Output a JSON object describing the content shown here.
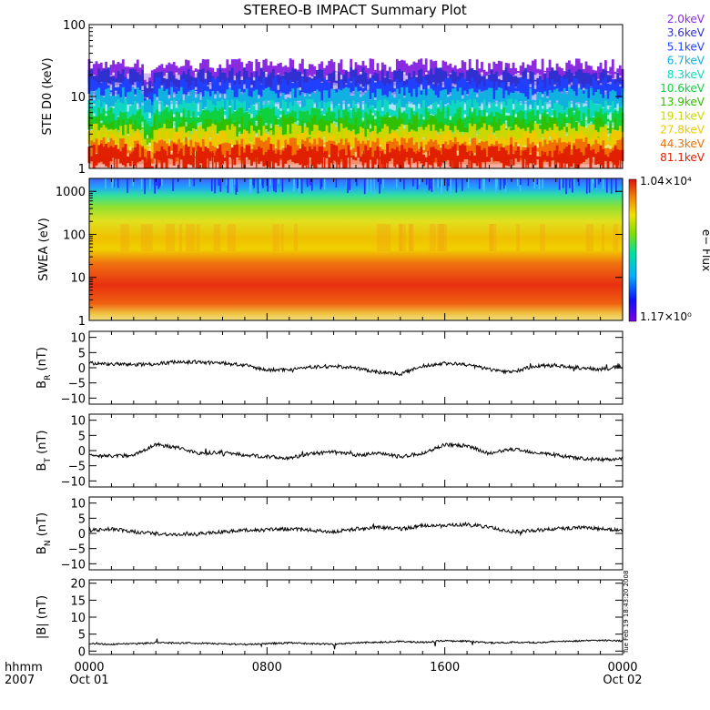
{
  "title": "STEREO-B IMPACT Summary Plot",
  "timestamp": "Tue Feb 19 18:43:20 2008",
  "time_axis": {
    "row1_label": "hhmm",
    "row2_label": "2007",
    "ticks": [
      {
        "hour": 0,
        "label": "0000",
        "date": "Oct 01"
      },
      {
        "hour": 8,
        "label": "0800",
        "date": ""
      },
      {
        "hour": 16,
        "label": "1600",
        "date": ""
      },
      {
        "hour": 24,
        "label": "0000",
        "date": "Oct 02"
      }
    ],
    "range_hours": [
      0,
      24
    ]
  },
  "colors": {
    "energy_channels": [
      "#8a2be2",
      "#3030d0",
      "#2040ff",
      "#10b0e0",
      "#10d8c0",
      "#10d040",
      "#30c000",
      "#c8d800",
      "#f0c800",
      "#f07000",
      "#e02000"
    ]
  },
  "chart_data": [
    {
      "name": "ste",
      "type": "line",
      "ylabel": "STE D0 (keV)",
      "yscale": "log",
      "ylim": [
        1,
        100
      ],
      "yticks": [
        {
          "v": 1,
          "label": "1"
        },
        {
          "v": 10,
          "label": "10"
        },
        {
          "v": 100,
          "label": "100"
        }
      ],
      "legend_placement": "right",
      "series": [
        {
          "name": "2.0keV",
          "typical": 20
        },
        {
          "name": "3.6keV",
          "typical": 15
        },
        {
          "name": "5.1keV",
          "typical": 11
        },
        {
          "name": "6.7keV",
          "typical": 8
        },
        {
          "name": "8.3keV",
          "typical": 5.5
        },
        {
          "name": "10.6keV",
          "typical": 4.2
        },
        {
          "name": "13.9keV",
          "typical": 3.2
        },
        {
          "name": "19.1keV",
          "typical": 2.5
        },
        {
          "name": "27.8keV",
          "typical": 2
        },
        {
          "name": "44.3keV",
          "typical": 1.6
        },
        {
          "name": "81.1keV",
          "typical": 1.3
        }
      ]
    },
    {
      "name": "swea",
      "type": "heatmap",
      "ylabel": "SWEA (eV)",
      "yscale": "log",
      "ylim": [
        1,
        2000
      ],
      "yticks": [
        {
          "v": 1,
          "label": "1"
        },
        {
          "v": 10,
          "label": "10"
        },
        {
          "v": 100,
          "label": "100"
        },
        {
          "v": 1000,
          "label": "1000"
        }
      ],
      "colorbar": {
        "label": "e− Flux",
        "max_label": "1.04×10⁴",
        "min_label": "1.17×10⁰"
      }
    },
    {
      "name": "br",
      "type": "line",
      "ylabel": "B_R (nT)",
      "ylim": [
        -12,
        12
      ],
      "yticks": [
        {
          "v": 10,
          "label": "10"
        },
        {
          "v": 5,
          "label": "5"
        },
        {
          "v": 0,
          "label": "0"
        },
        {
          "v": -5,
          "label": "−5"
        },
        {
          "v": -10,
          "label": "−10"
        }
      ],
      "x": [
        0,
        1,
        2,
        3,
        4,
        5,
        6,
        7,
        8,
        9,
        10,
        11,
        12,
        13,
        14,
        15,
        16,
        17,
        18,
        19,
        20,
        21,
        22,
        23,
        24
      ],
      "values": [
        1.5,
        1.2,
        1.0,
        1.3,
        2.0,
        1.8,
        1.5,
        0.8,
        -0.8,
        -0.5,
        0.2,
        0.5,
        0.0,
        -1.5,
        -2.0,
        0.5,
        1.5,
        1.0,
        -0.5,
        -1.5,
        0.5,
        0.8,
        0.0,
        -0.5,
        0.5
      ]
    },
    {
      "name": "bt",
      "type": "line",
      "ylabel": "B_T (nT)",
      "ylim": [
        -12,
        12
      ],
      "yticks": [
        {
          "v": 10,
          "label": "10"
        },
        {
          "v": 5,
          "label": "5"
        },
        {
          "v": 0,
          "label": "0"
        },
        {
          "v": -5,
          "label": "−5"
        },
        {
          "v": -10,
          "label": "−10"
        }
      ],
      "x": [
        0,
        1,
        2,
        3,
        4,
        5,
        6,
        7,
        8,
        9,
        10,
        11,
        12,
        13,
        14,
        15,
        16,
        17,
        18,
        19,
        20,
        21,
        22,
        23,
        24
      ],
      "values": [
        -1.5,
        -1.8,
        -1.5,
        2.0,
        1.0,
        -1.0,
        -0.5,
        -1.5,
        -2.0,
        -2.5,
        -1.0,
        -0.5,
        -1.5,
        -1.0,
        -2.0,
        -1.0,
        2.0,
        1.5,
        -1.0,
        0.5,
        -0.5,
        -1.5,
        -2.5,
        -3.0,
        -2.5
      ]
    },
    {
      "name": "bn",
      "type": "line",
      "ylabel": "B_N (nT)",
      "ylim": [
        -12,
        12
      ],
      "yticks": [
        {
          "v": 10,
          "label": "10"
        },
        {
          "v": 5,
          "label": "5"
        },
        {
          "v": 0,
          "label": "0"
        },
        {
          "v": -5,
          "label": "−5"
        },
        {
          "v": -10,
          "label": "−10"
        }
      ],
      "x": [
        0,
        1,
        2,
        3,
        4,
        5,
        6,
        7,
        8,
        9,
        10,
        11,
        12,
        13,
        14,
        15,
        16,
        17,
        18,
        19,
        20,
        21,
        22,
        23,
        24
      ],
      "values": [
        1.0,
        1.5,
        0.5,
        0.0,
        -0.5,
        0.0,
        0.5,
        1.0,
        1.2,
        1.5,
        1.0,
        0.5,
        1.5,
        2.0,
        1.5,
        2.5,
        2.5,
        3.0,
        2.0,
        0.5,
        1.0,
        1.5,
        2.0,
        1.5,
        1.0
      ]
    },
    {
      "name": "bmag",
      "type": "line",
      "ylabel": "|B| (nT)",
      "ylim": [
        -1,
        21
      ],
      "yticks": [
        {
          "v": 0,
          "label": "0"
        },
        {
          "v": 5,
          "label": "5"
        },
        {
          "v": 10,
          "label": "10"
        },
        {
          "v": 15,
          "label": "15"
        },
        {
          "v": 20,
          "label": "20"
        }
      ],
      "x": [
        0,
        1,
        2,
        3,
        4,
        5,
        6,
        7,
        8,
        9,
        10,
        11,
        12,
        13,
        14,
        15,
        16,
        17,
        18,
        19,
        20,
        21,
        22,
        23,
        24
      ],
      "values": [
        2.2,
        2.0,
        2.1,
        2.5,
        2.4,
        2.3,
        2.1,
        2.0,
        2.2,
        2.4,
        2.2,
        2.0,
        2.5,
        2.6,
        2.8,
        2.6,
        3.0,
        2.9,
        2.4,
        2.6,
        2.5,
        2.8,
        3.0,
        3.2,
        3.0
      ]
    }
  ]
}
